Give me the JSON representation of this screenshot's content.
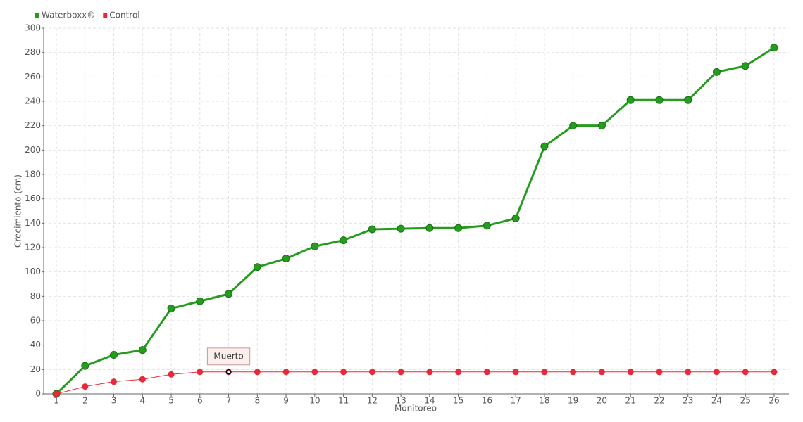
{
  "chart_data": {
    "type": "line",
    "x_label": "Monitoreo",
    "y_label": "Crecimiento (cm)",
    "categories": [
      "1",
      "2",
      "3",
      "4",
      "5",
      "6",
      "7",
      "8",
      "9",
      "10",
      "11",
      "12",
      "13",
      "14",
      "15",
      "16",
      "17",
      "18",
      "19",
      "20",
      "21",
      "22",
      "23",
      "24",
      "25",
      "26"
    ],
    "series": [
      {
        "name": "Waterboxx®",
        "color": "#249c1d",
        "values": [
          0,
          23,
          32,
          36,
          70,
          76,
          82,
          104,
          111,
          121,
          126,
          135,
          135.5,
          136,
          136,
          138,
          144,
          203,
          220,
          220,
          241,
          241,
          241,
          264,
          269,
          284
        ]
      },
      {
        "name": "Control",
        "color": "#e8293a",
        "values": [
          0,
          6,
          10,
          12,
          16,
          18,
          18,
          18,
          18,
          18,
          18,
          18,
          18,
          18,
          18,
          18,
          18,
          18,
          18,
          18,
          18,
          18,
          18,
          18,
          18,
          18
        ]
      }
    ],
    "ylim": [
      0,
      300
    ],
    "yticks": [
      0,
      20,
      40,
      60,
      80,
      100,
      120,
      140,
      160,
      180,
      200,
      220,
      240,
      260,
      280,
      300
    ],
    "grid": true,
    "legend": "top-left",
    "annotations": [
      {
        "text": "Muerto",
        "series": "Control",
        "category": "7"
      }
    ]
  }
}
